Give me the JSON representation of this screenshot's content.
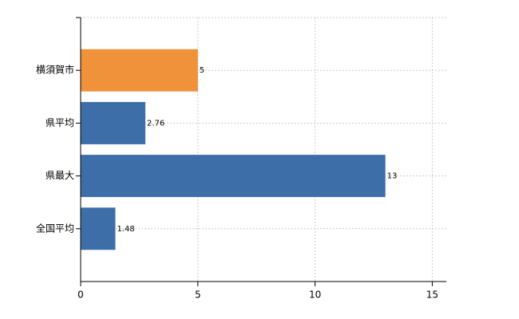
{
  "chart_data": {
    "type": "bar",
    "orientation": "horizontal",
    "categories": [
      "横須賀市",
      "県平均",
      "県最大",
      "全国平均"
    ],
    "values": [
      5,
      2.76,
      13,
      1.48
    ],
    "colors": [
      "#f0923a",
      "#3d6ea8",
      "#3d6ea8",
      "#3d6ea8"
    ],
    "xlim": [
      0,
      15.6
    ],
    "xticks": [
      0,
      5,
      10,
      15
    ],
    "grid": true
  }
}
